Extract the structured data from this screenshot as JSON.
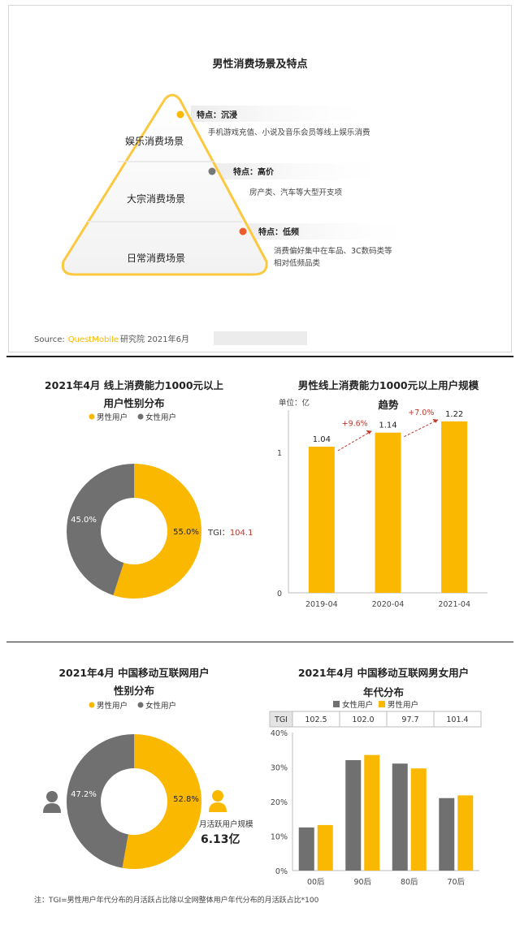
{
  "colors": {
    "yellow": "#fbb800",
    "gray": "#707070",
    "orange_dot": "#f05a28",
    "arrow": "#c0392b",
    "dark_gray_dot": "#777777"
  },
  "icons": [
    "female-user-icon",
    "male-user-icon"
  ],
  "panel1": {
    "title": "男性消费场景及特点",
    "levels": [
      {
        "name": "娱乐消费场景",
        "feature": "特点：沉浸",
        "desc": "手机游戏充值、小说及音乐会员等线上娱乐消费"
      },
      {
        "name": "大宗消费场景",
        "feature": "特点：高价",
        "desc": "房产类、汽车等大型开支项"
      },
      {
        "name": "日常消费场景",
        "feature": "特点：低频",
        "desc_lines": [
          "消费偏好集中在车品、3C数码类等",
          "相对低频品类"
        ]
      }
    ],
    "source_prefix": "Source:",
    "source_brand": "QuestMobile",
    "source_suffix": "研究院 2021年6月"
  },
  "panel2": {
    "left": {
      "title_lines": [
        "2021年4月 线上消费能力1000元以上",
        "用户性别分布"
      ],
      "legend": [
        "男性用户",
        "女性用户"
      ],
      "tgi_label": "TGI：",
      "tgi_value": "104.1"
    },
    "right": {
      "title_lines": [
        "男性线上消费能力1000元以上用户规模",
        "趋势"
      ],
      "unit": "单位：亿"
    }
  },
  "panel3": {
    "left": {
      "title_lines": [
        "2021年4月  中国移动互联网用户",
        "性别分布"
      ],
      "legend": [
        "男性用户",
        "女性用户"
      ],
      "mau_label": "月活跃用户规模",
      "mau_value": "6.13亿"
    },
    "right": {
      "title_lines": [
        "2021年4月  中国移动互联网男女用户",
        "年代分布"
      ],
      "legend": [
        "女性用户",
        "男性用户"
      ],
      "tgi_header": "TGI",
      "tgi_values": [
        "102.5",
        "102.0",
        "97.7",
        "101.4"
      ]
    },
    "note": "注：TGI=男性用户年代分布的月活跃占比除以全网整体用户年代分布的月活跃占比*100"
  },
  "chart_data": [
    {
      "type": "pie",
      "categories": [
        "男性用户",
        "女性用户"
      ],
      "values": [
        55.0,
        45.0
      ],
      "labels": [
        "55.0%",
        "45.0%"
      ]
    },
    {
      "type": "bar",
      "categories": [
        "2019-04",
        "2020-04",
        "2021-04"
      ],
      "values": [
        1.04,
        1.14,
        1.22
      ],
      "value_labels": [
        "1.04",
        "1.14",
        "1.22"
      ],
      "growth_labels": [
        "+9.6%",
        "+7.0%"
      ],
      "yticks": [
        "0",
        "1"
      ],
      "ylim": [
        0,
        1.3
      ]
    },
    {
      "type": "pie",
      "categories": [
        "男性用户",
        "女性用户"
      ],
      "values": [
        52.8,
        47.2
      ],
      "labels": [
        "52.8%",
        "47.2%"
      ]
    },
    {
      "type": "bar",
      "categories": [
        "00后",
        "90后",
        "80后",
        "70后"
      ],
      "series": [
        {
          "name": "女性用户",
          "values": [
            12.5,
            32,
            31,
            21
          ]
        },
        {
          "name": "男性用户",
          "values": [
            13.2,
            33.5,
            29.6,
            21.8
          ]
        }
      ],
      "yticks": [
        "0%",
        "10%",
        "20%",
        "30%",
        "40%"
      ],
      "ylim": [
        0,
        40
      ]
    }
  ]
}
